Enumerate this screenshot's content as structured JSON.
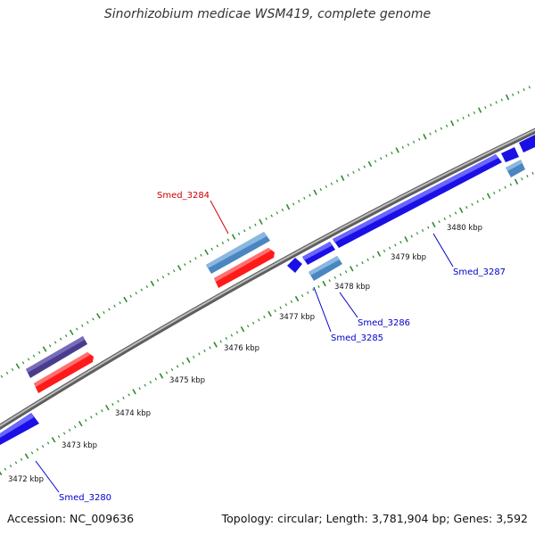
{
  "title": "Sinorhizobium medicae WSM419, complete genome",
  "footer": {
    "accession": "Accession: NC_009636",
    "summary": "Topology: circular; Length: 3,781,904 bp; Genes: 3,592"
  },
  "colors": {
    "backbone": "#8a8a8a",
    "ticks": "#2e8b2e",
    "blue_gene": "#1a10e6",
    "red_gene": "#ff1a1a",
    "steel_gene": "#4a86c0",
    "purple_gene": "#4a3c8c",
    "blue_label": "#0000cc",
    "red_label": "#cc0000"
  },
  "ticks": [
    {
      "label": "3472 kbp"
    },
    {
      "label": "3473 kbp"
    },
    {
      "label": "3474 kbp"
    },
    {
      "label": "3475 kbp"
    },
    {
      "label": "3476 kbp"
    },
    {
      "label": "3477 kbp"
    },
    {
      "label": "3478 kbp"
    },
    {
      "label": "3479 kbp"
    },
    {
      "label": "3480 kbp"
    }
  ],
  "genes": [
    {
      "name": "Smed_3280",
      "color": "blue"
    },
    {
      "name": "Smed_3284",
      "color": "red"
    },
    {
      "name": "Smed_3285",
      "color": "blue"
    },
    {
      "name": "Smed_3286",
      "color": "blue"
    },
    {
      "name": "Smed_3287",
      "color": "blue"
    }
  ]
}
